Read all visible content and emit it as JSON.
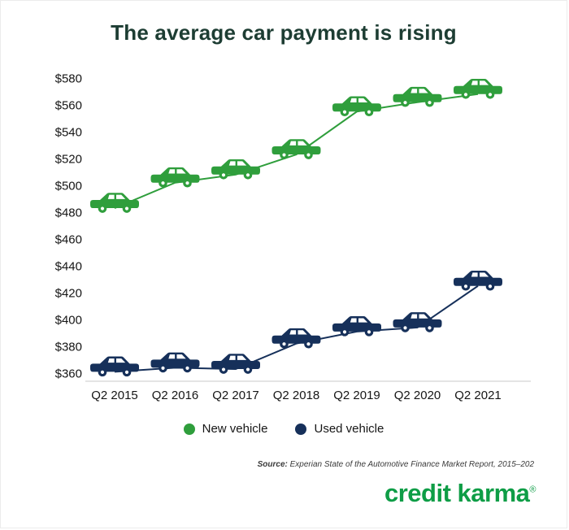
{
  "title": "The average car payment is rising",
  "legend": {
    "new_label": "New vehicle",
    "used_label": "Used vehicle"
  },
  "source": {
    "prefix": "Source:",
    "text": " Experian State of the Automotive Finance Market Report, 2015–202"
  },
  "logo": {
    "text": "credit karma",
    "mark": "®",
    "color": "#0e9d46"
  },
  "colors": {
    "new_vehicle": "#2f9e3c",
    "used_vehicle": "#16305a",
    "title": "#1d3d33",
    "axis_text": "#151515",
    "axis_line": "#c9c9c9"
  },
  "chart_data": {
    "type": "line",
    "title": "The average car payment is rising",
    "categories": [
      "Q2 2015",
      "Q2 2016",
      "Q2 2017",
      "Q2 2018",
      "Q2 2019",
      "Q2 2020",
      "Q2 2021"
    ],
    "series": [
      {
        "name": "New vehicle",
        "color": "#2f9e3c",
        "values": [
          483,
          502,
          508,
          523,
          555,
          562,
          568
        ]
      },
      {
        "name": "Used vehicle",
        "color": "#16305a",
        "values": [
          361,
          364,
          363,
          382,
          391,
          394,
          425
        ]
      }
    ],
    "xlabel": "",
    "ylabel": "",
    "ylim": [
      360,
      580
    ],
    "ytick_step": 20,
    "ytick_prefix": "$",
    "grid": false,
    "legend_position": "bottom",
    "marker": "car-icon"
  }
}
